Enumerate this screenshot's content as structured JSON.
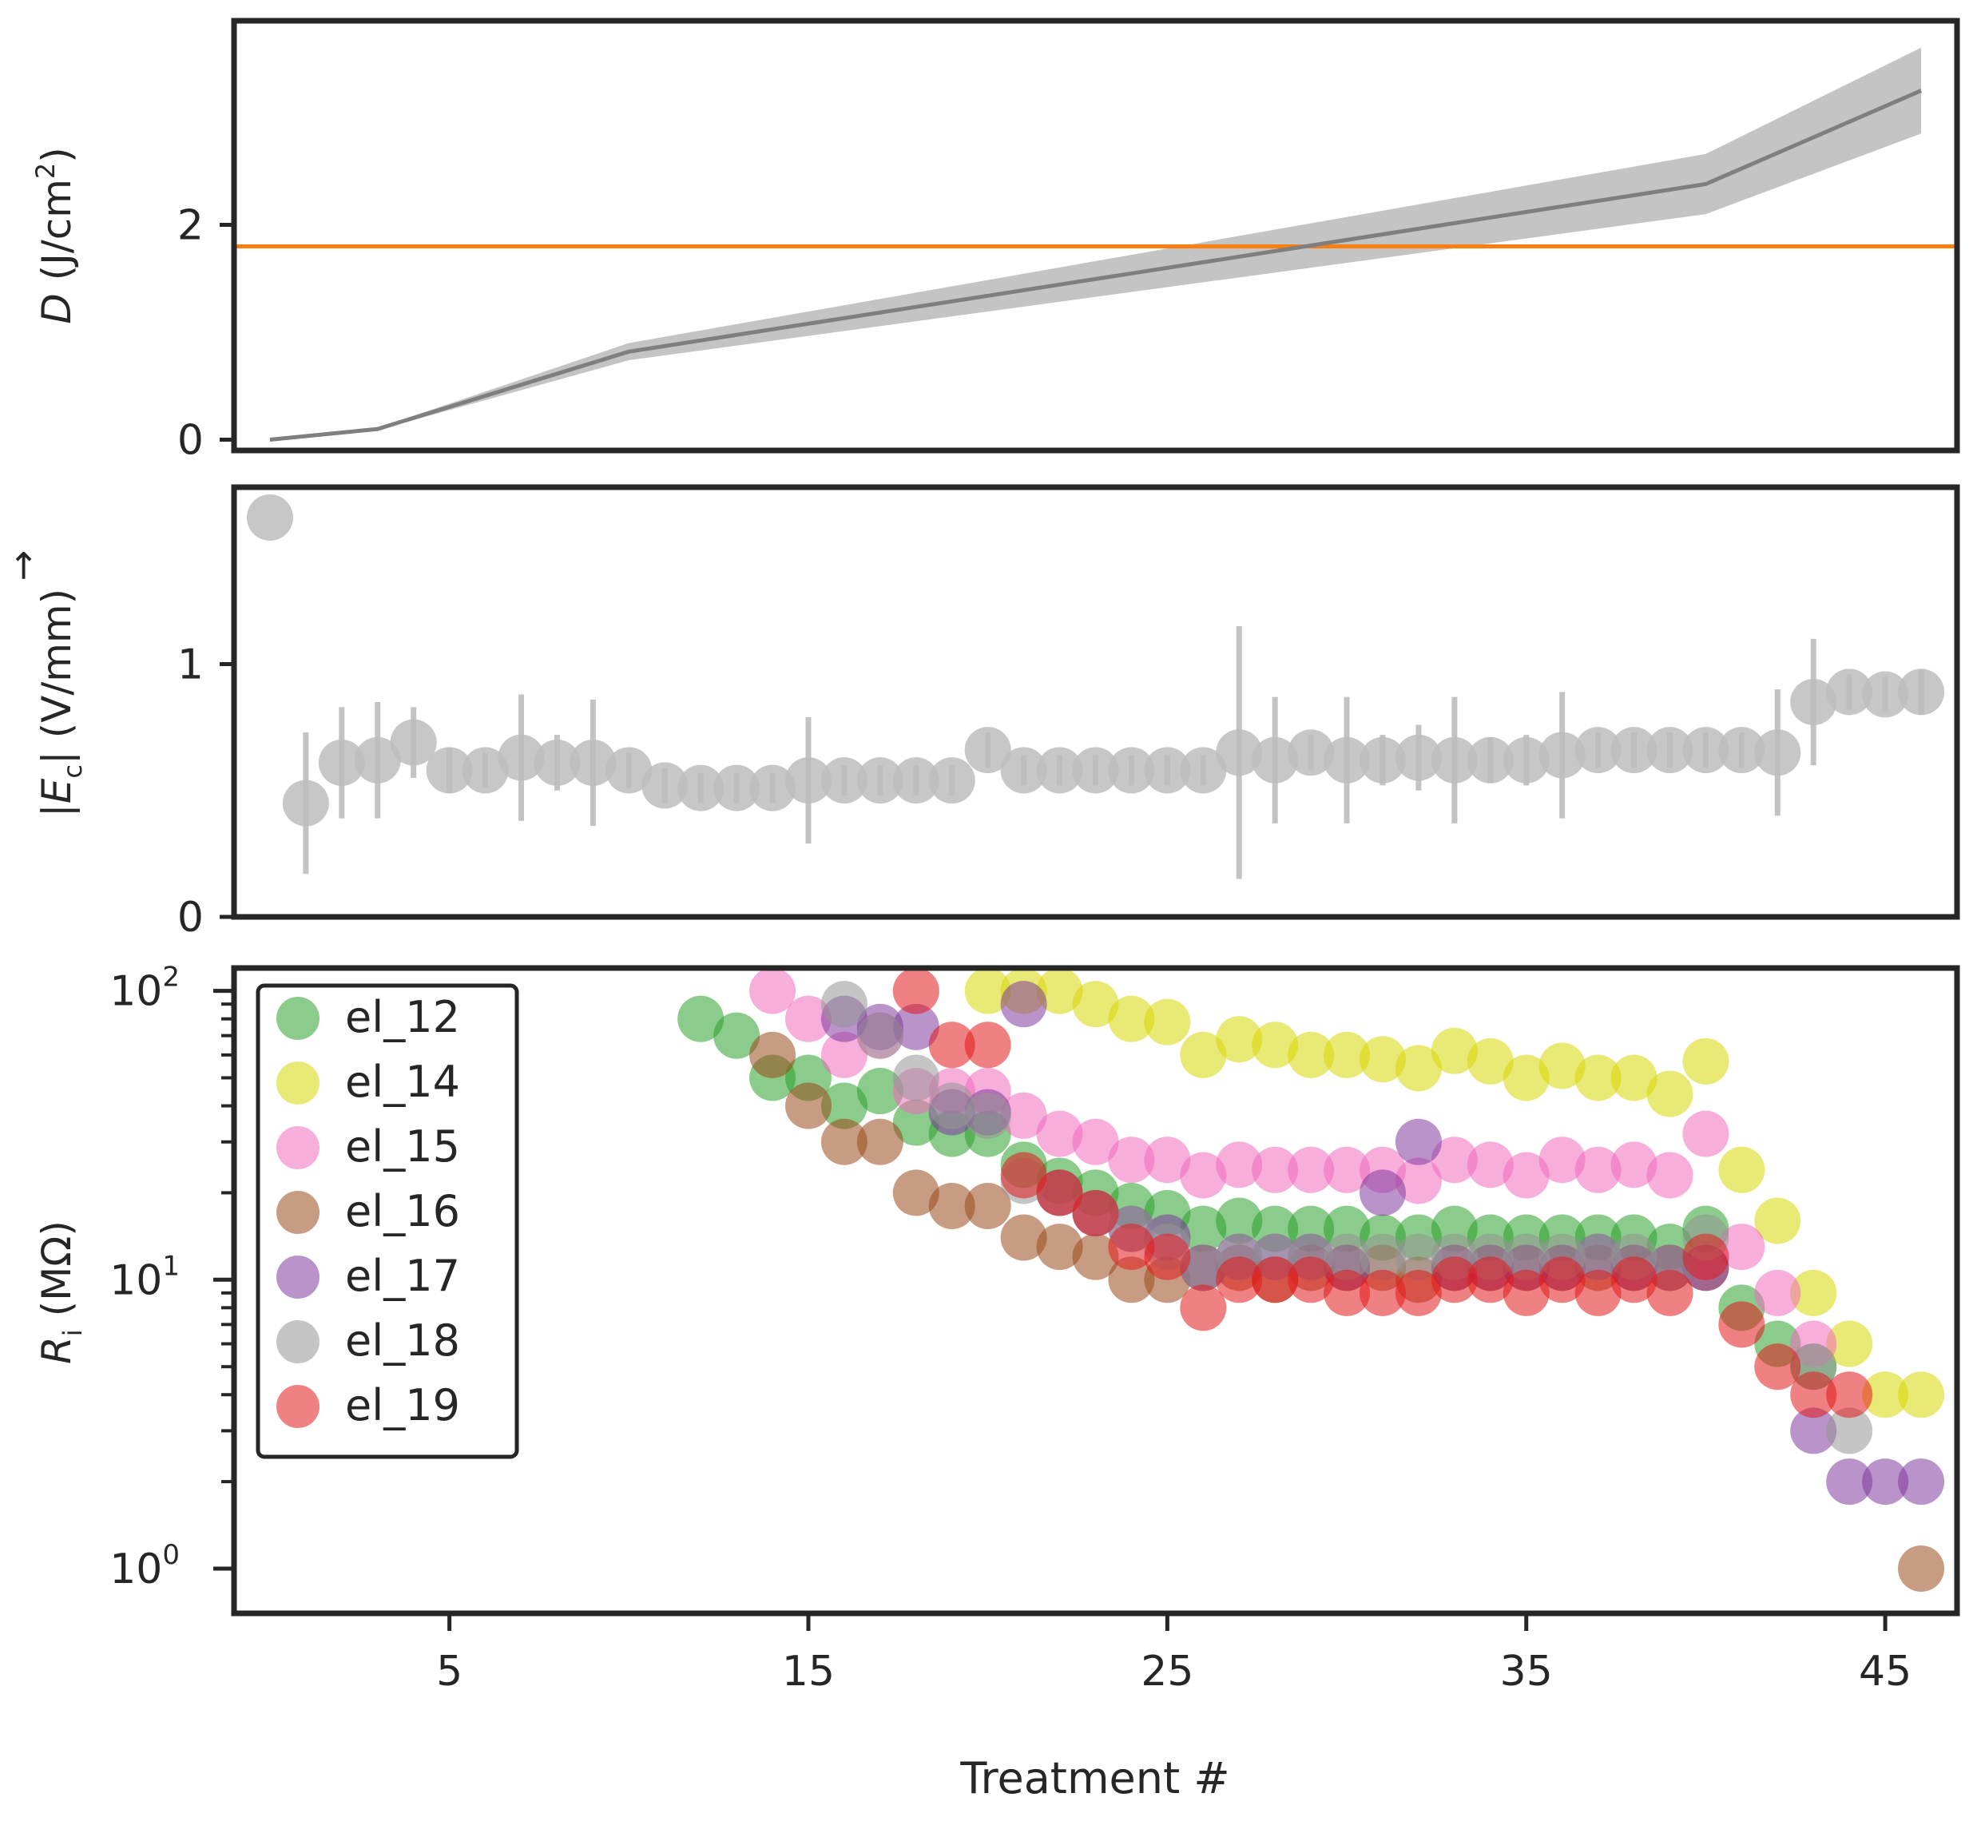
{
  "chart_data": [
    {
      "type": "line",
      "panel": "top",
      "ylabel_var": "D",
      "ylabel_unit": " (J/cm",
      "ylabel_sup": "2",
      "ylabel_close": ")",
      "yticks": [
        0,
        2
      ],
      "ytick_labels": [
        "0",
        "2"
      ],
      "ylim": [
        -0.1,
        3.9
      ],
      "x": [
        0,
        3,
        10,
        40,
        46
      ],
      "y": [
        0.0,
        0.1,
        0.82,
        2.38,
        3.25
      ],
      "band_lower": [
        0.0,
        0.09,
        0.74,
        2.1,
        2.85
      ],
      "band_upper": [
        0.0,
        0.11,
        0.9,
        2.66,
        3.65
      ],
      "line_color": "#7f7f7f",
      "band_color": "#c4c4c4",
      "hline": {
        "y": 1.8,
        "color": "#ff7f0e"
      }
    },
    {
      "type": "scatter",
      "panel": "middle",
      "ylabel_pre": "|",
      "ylabel_var": "E",
      "ylabel_sub": "c",
      "ylabel_unit": "| (V/mm)",
      "ylabel_arrow": "→",
      "yticks": [
        0,
        1
      ],
      "ytick_labels": [
        "0",
        "1"
      ],
      "ylim": [
        0,
        1.7
      ],
      "x": [
        0,
        1,
        2,
        3,
        4,
        5,
        6,
        7,
        8,
        9,
        10,
        11,
        12,
        13,
        14,
        15,
        16,
        17,
        18,
        19,
        20,
        21,
        22,
        23,
        24,
        25,
        26,
        27,
        28,
        29,
        30,
        31,
        32,
        33,
        34,
        35,
        36,
        37,
        38,
        39,
        40,
        41,
        42,
        43,
        44,
        45,
        46
      ],
      "y": [
        1.58,
        0.45,
        0.61,
        0.62,
        0.69,
        0.58,
        0.58,
        0.63,
        0.61,
        0.61,
        0.58,
        0.52,
        0.51,
        0.51,
        0.51,
        0.54,
        0.54,
        0.54,
        0.54,
        0.54,
        0.66,
        0.58,
        0.58,
        0.58,
        0.58,
        0.58,
        0.58,
        0.65,
        0.62,
        0.65,
        0.62,
        0.62,
        0.63,
        0.62,
        0.62,
        0.62,
        0.64,
        0.66,
        0.66,
        0.66,
        0.66,
        0.66,
        0.65,
        0.85,
        0.89,
        0.88,
        0.89
      ],
      "err": [
        0,
        0.28,
        0.22,
        0.23,
        0.14,
        0.09,
        0.07,
        0.25,
        0.11,
        0.25,
        0.07,
        0.07,
        0.06,
        0.06,
        0.06,
        0.25,
        0.06,
        0.06,
        0.06,
        0.06,
        0.07,
        0.06,
        0.06,
        0.06,
        0.06,
        0.06,
        0.06,
        0.5,
        0.25,
        0.07,
        0.25,
        0.1,
        0.13,
        0.25,
        0.09,
        0.1,
        0.25,
        0.07,
        0.07,
        0.07,
        0.07,
        0.07,
        0.25,
        0.25,
        0.07,
        0.07,
        0.09
      ],
      "color": "#bdbdbd"
    },
    {
      "type": "scatter",
      "panel": "bottom",
      "scale": "log",
      "ylabel_var": "R",
      "ylabel_sub": "i",
      "ylabel_unit": " (MΩ)",
      "ylim": [
        0.7,
        120
      ],
      "yticks": [
        1,
        10,
        100
      ],
      "ytick_base": "10",
      "ytick_exps": [
        "0",
        "1",
        "2"
      ],
      "xlabel": "Treatment #",
      "xlim": [
        -1,
        47
      ],
      "xticks": [
        5,
        15,
        25,
        35,
        45
      ],
      "xtick_labels": [
        "5",
        "15",
        "25",
        "35",
        "45"
      ],
      "legend_position": "upper-left",
      "series": [
        {
          "name": "el_12",
          "color": "#2ca02c",
          "x": [
            12,
            13,
            14,
            15,
            16,
            17,
            18,
            19,
            20,
            21,
            22,
            23,
            24,
            25,
            26,
            27,
            28,
            29,
            30,
            31,
            32,
            33,
            34,
            35,
            36,
            37,
            38,
            39,
            40,
            41,
            42,
            43
          ],
          "y": [
            80,
            70,
            50,
            50,
            40,
            45,
            35,
            32,
            32,
            25,
            22,
            20,
            18,
            17,
            15,
            16,
            15,
            15,
            15,
            14,
            14,
            15,
            14,
            14,
            14,
            14,
            14,
            13,
            15,
            8,
            6,
            5
          ]
        },
        {
          "name": "el_14",
          "color": "#d7d705",
          "x": [
            20,
            21,
            22,
            23,
            24,
            25,
            26,
            27,
            28,
            29,
            30,
            31,
            32,
            33,
            34,
            35,
            36,
            37,
            38,
            39,
            40,
            41,
            42,
            43,
            44,
            45,
            46
          ],
          "y": [
            100,
            100,
            100,
            90,
            80,
            78,
            60,
            68,
            65,
            60,
            60,
            58,
            54,
            62,
            57,
            50,
            55,
            50,
            50,
            44,
            57,
            24,
            16,
            9,
            6,
            4,
            4
          ]
        },
        {
          "name": "el_15",
          "color": "#f06cbd",
          "x": [
            14,
            15,
            16,
            17,
            18,
            19,
            20,
            21,
            22,
            23,
            24,
            25,
            26,
            27,
            28,
            29,
            30,
            31,
            32,
            33,
            34,
            35,
            36,
            37,
            38,
            39,
            40,
            41,
            42,
            43
          ],
          "y": [
            100,
            80,
            60,
            70,
            45,
            45,
            45,
            37,
            32,
            30,
            26,
            26,
            23,
            25,
            24,
            24,
            24,
            24,
            22,
            26,
            25,
            23,
            26,
            24,
            25,
            23,
            32,
            13,
            9,
            6
          ]
        },
        {
          "name": "el_16",
          "color": "#9a4a1b",
          "x": [
            14,
            15,
            16,
            17,
            18,
            19,
            20,
            21,
            22,
            23,
            24,
            25,
            26,
            27,
            28,
            29,
            30,
            31,
            32,
            33,
            34,
            35,
            36,
            37,
            38,
            39,
            40,
            46
          ],
          "y": [
            60,
            40,
            30,
            30,
            20,
            18,
            18,
            14,
            13,
            12,
            10,
            10,
            11,
            11,
            10,
            11,
            11,
            11,
            10,
            11,
            11,
            11,
            11,
            11,
            11,
            11,
            11,
            1
          ]
        },
        {
          "name": "el_17",
          "color": "#7f3a9c",
          "x": [
            16,
            17,
            18,
            19,
            20,
            21,
            22,
            23,
            24,
            25,
            26,
            27,
            28,
            29,
            30,
            31,
            32,
            33,
            34,
            35,
            36,
            37,
            38,
            39,
            40,
            43,
            44,
            45,
            46
          ],
          "y": [
            80,
            75,
            75,
            38,
            38,
            90,
            20,
            17,
            15,
            14,
            11,
            12,
            12,
            12,
            11,
            20,
            30,
            11,
            11,
            11,
            11,
            12,
            11,
            11,
            11,
            3,
            2,
            2,
            2
          ]
        },
        {
          "name": "el_18",
          "color": "#969696",
          "x": [
            16,
            17,
            18,
            19,
            20,
            21,
            22,
            23,
            24,
            25,
            26,
            27,
            28,
            29,
            30,
            31,
            32,
            33,
            34,
            35,
            36,
            37,
            38,
            39,
            40,
            43,
            44
          ],
          "y": [
            90,
            70,
            50,
            40,
            37,
            22,
            20,
            17,
            15,
            13,
            11,
            12,
            12,
            12,
            12,
            12,
            12,
            12,
            12,
            12,
            12,
            12,
            12,
            11,
            14,
            5,
            3
          ]
        },
        {
          "name": "el_19",
          "color": "#e3191c",
          "x": [
            18,
            19,
            20,
            21,
            22,
            23,
            24,
            25,
            26,
            27,
            28,
            29,
            30,
            31,
            32,
            33,
            34,
            35,
            36,
            37,
            38,
            39,
            40,
            41,
            42,
            43,
            44
          ],
          "y": [
            100,
            65,
            65,
            23,
            20,
            17,
            13,
            12,
            8,
            10,
            10,
            10,
            9,
            9,
            9,
            10,
            10,
            9,
            10,
            9,
            10,
            9,
            12,
            7,
            5,
            4,
            4
          ]
        }
      ]
    }
  ]
}
